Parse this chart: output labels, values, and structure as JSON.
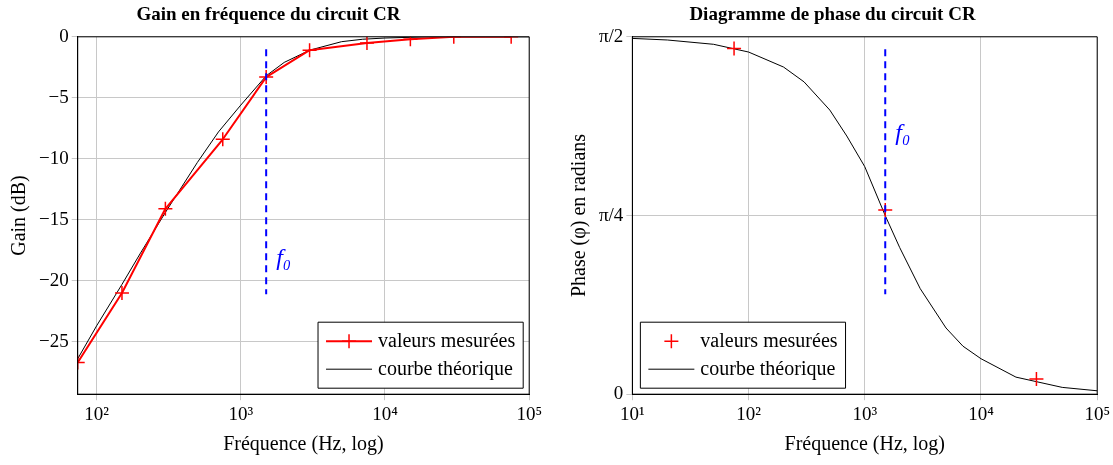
{
  "chart_data": [
    {
      "type": "line",
      "title": "Gain en fréquence du circuit CR",
      "xlabel": "Fréquence (Hz, log)",
      "ylabel": "Gain (dB)",
      "log": "x",
      "grid": true,
      "legend": "bottom right",
      "xlim": [
        74,
        100000
      ],
      "ylim": [
        -29.3,
        0
      ],
      "xticks": [
        {
          "value": 100,
          "label": "10²"
        },
        {
          "value": 1000,
          "label": "10³"
        },
        {
          "value": 10000,
          "label": "10⁴"
        },
        {
          "value": 100000,
          "label": "10⁵"
        }
      ],
      "yticks": [
        0,
        {
          "value": -5,
          "label": "−5"
        },
        {
          "value": -10,
          "label": "−10"
        },
        {
          "value": -15,
          "label": "−15"
        },
        {
          "value": -20,
          "label": "−20"
        },
        {
          "value": -25,
          "label": "−25"
        }
      ],
      "series": [
        {
          "name": "valeurs mesurées",
          "type": "line",
          "marker": "cross",
          "color": "#ff0000",
          "x": [
            74,
            150,
            300,
            750,
            1500,
            3000,
            7500,
            15000,
            30000,
            75000
          ],
          "values": [
            -26.7,
            -21,
            -14.1,
            -8.4,
            -3.3,
            -1.1,
            -0.5,
            -0.2,
            0,
            0
          ]
        },
        {
          "name": "courbe théorique",
          "type": "line",
          "marker": "none",
          "color": "#000000",
          "x": [
            74,
            100,
            150,
            200,
            300,
            500,
            700,
            1000,
            1500,
            2000,
            3000,
            5000,
            7000,
            10000,
            20000,
            50000,
            100000
          ],
          "values": [
            -26.4,
            -23.7,
            -20.3,
            -17.8,
            -14.4,
            -10.3,
            -7.8,
            -5.6,
            -3.2,
            -2.1,
            -1.1,
            -0.4,
            -0.2,
            -0.1,
            0,
            0,
            0
          ]
        }
      ],
      "ref_lines": [
        {
          "axis": "x",
          "value": 1500,
          "label": "f₀",
          "color": "#0000ff",
          "line_style": "dashed"
        }
      ]
    },
    {
      "type": "line",
      "title": "Diagramme de phase du circuit CR",
      "xlabel": "Fréquence (Hz, log)",
      "ylabel": "Phase (φ) en radians",
      "log": "x",
      "grid": true,
      "legend": "bottom left",
      "xlim": [
        10,
        100000
      ],
      "ylim": [
        0,
        1.571
      ],
      "xticks": [
        {
          "value": 10,
          "label": "10¹"
        },
        {
          "value": 100,
          "label": "10²"
        },
        {
          "value": 1000,
          "label": "10³"
        },
        {
          "value": 10000,
          "label": "10⁴"
        },
        {
          "value": 100000,
          "label": "10⁵"
        }
      ],
      "yticks": [
        0,
        {
          "value": 0.785,
          "label": "π/4"
        },
        {
          "value": 1.571,
          "label": "π/2"
        }
      ],
      "series": [
        {
          "name": "valeurs mesurées",
          "type": "scatter",
          "marker": "cross",
          "color": "#ff0000",
          "x": [
            75,
            1500,
            30000
          ],
          "values": [
            1.52,
            0.81,
            0.067
          ]
        },
        {
          "name": "courbe théorique",
          "type": "line",
          "marker": "none",
          "color": "#000000",
          "x": [
            10,
            20,
            50,
            100,
            200,
            300,
            500,
            700,
            1000,
            1500,
            2000,
            3000,
            5000,
            7000,
            10000,
            20000,
            50000,
            100000
          ],
          "values": [
            1.564,
            1.557,
            1.538,
            1.504,
            1.438,
            1.373,
            1.249,
            1.135,
            1.0,
            0.785,
            0.644,
            0.464,
            0.291,
            0.211,
            0.156,
            0.075,
            0.03,
            0.015
          ]
        }
      ],
      "ref_lines": [
        {
          "axis": "x",
          "value": 1500,
          "label": "f₀",
          "color": "#0000ff",
          "line_style": "dashed"
        }
      ]
    }
  ]
}
